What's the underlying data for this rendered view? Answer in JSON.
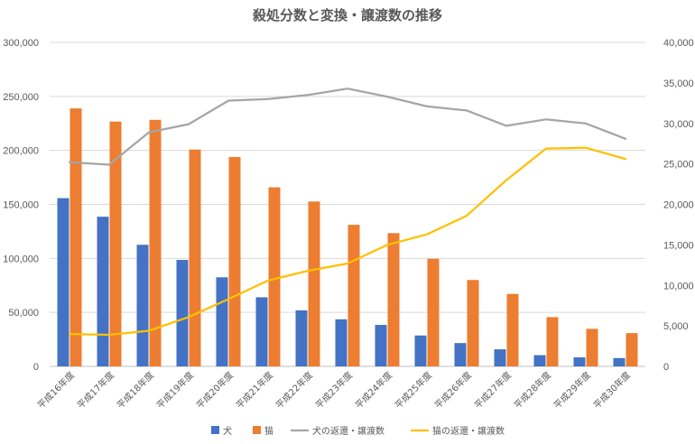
{
  "chart_data": {
    "type": "bar",
    "title": "殺処分数と変換・譲渡数の推移",
    "categories": [
      "平成16年度",
      "平成17年度",
      "平成18年度",
      "平成19年度",
      "平成20年度",
      "平成21年度",
      "平成22年度",
      "平成23年度",
      "平成24年度",
      "平成25年度",
      "平成26年度",
      "平成27年度",
      "平成28年度",
      "平成29年度",
      "平成30年度"
    ],
    "y_left": {
      "ticks": [
        "0",
        "50,000",
        "100,000",
        "150,000",
        "200,000",
        "250,000",
        "300,000"
      ],
      "min": 0,
      "max": 300000
    },
    "y_right": {
      "ticks": [
        "0",
        "5,000",
        "10,000",
        "15,000",
        "20,000",
        "25,000",
        "30,000",
        "35,000",
        "40,000"
      ],
      "min": 0,
      "max": 40000
    },
    "grid": true,
    "legend_position": "bottom",
    "series": [
      {
        "name": "犬",
        "type": "bar",
        "axis": "left",
        "color": "#4472C4",
        "values": [
          155800,
          138600,
          112600,
          98600,
          82500,
          64000,
          51900,
          43600,
          38400,
          28600,
          21600,
          15800,
          10400,
          8400,
          7700
        ]
      },
      {
        "name": "猫",
        "type": "bar",
        "axis": "left",
        "color": "#ED7D31",
        "values": [
          238900,
          226700,
          228300,
          200800,
          193900,
          165800,
          152700,
          131100,
          123400,
          99700,
          80000,
          67100,
          45600,
          34800,
          30800
        ]
      },
      {
        "name": "犬の返還・譲渡数",
        "type": "line",
        "axis": "right",
        "color": "#A5A5A5",
        "values": [
          25200,
          24900,
          28900,
          29900,
          32800,
          33000,
          33500,
          34300,
          33300,
          32100,
          31600,
          29700,
          30500,
          30000,
          28100
        ]
      },
      {
        "name": "猫の返還・譲渡数",
        "type": "line",
        "axis": "right",
        "color": "#FFC000",
        "values": [
          4000,
          3900,
          4400,
          6100,
          8300,
          10600,
          11800,
          12700,
          15000,
          16300,
          18600,
          23000,
          26900,
          27000,
          25600
        ]
      }
    ]
  }
}
